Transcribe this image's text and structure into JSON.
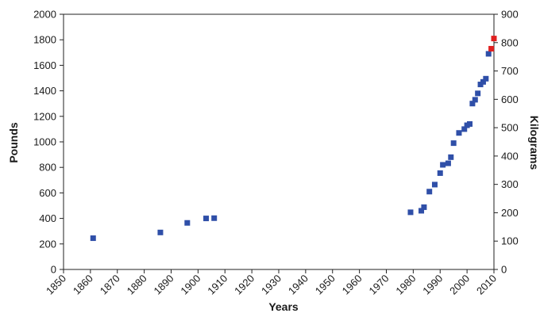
{
  "chart_data": {
    "type": "scatter",
    "title": "",
    "xlabel": "Years",
    "ylabel": "Pounds",
    "y2label": "Kilograms",
    "xlim": [
      1850,
      2010
    ],
    "ylim": [
      0,
      2000
    ],
    "y2lim": [
      0,
      900
    ],
    "xticks": [
      "1850",
      "1860",
      "1870",
      "1880",
      "1890",
      "1900",
      "1910",
      "1920",
      "1930",
      "1940",
      "1950",
      "1960",
      "1970",
      "1980",
      "1990",
      "2000",
      "2010"
    ],
    "yticks": [
      "0",
      "200",
      "400",
      "600",
      "800",
      "1000",
      "1200",
      "1400",
      "1600",
      "1800",
      "2000"
    ],
    "y2ticks": [
      "0",
      "100",
      "200",
      "300",
      "400",
      "500",
      "600",
      "700",
      "800",
      "900"
    ],
    "grid": false,
    "legend": "none",
    "series": [
      {
        "color": "#2f4fa8",
        "points": [
          [
            1861,
            245
          ],
          [
            1886,
            290
          ],
          [
            1896,
            365
          ],
          [
            1903,
            400
          ],
          [
            1906,
            402
          ],
          [
            1979,
            448
          ],
          [
            1983,
            460
          ],
          [
            1984,
            488
          ],
          [
            1986,
            610
          ],
          [
            1988,
            665
          ],
          [
            1990,
            755
          ],
          [
            1991,
            820
          ],
          [
            1993,
            832
          ],
          [
            1994,
            880
          ],
          [
            1995,
            990
          ],
          [
            1997,
            1070
          ],
          [
            1999,
            1100
          ],
          [
            2000,
            1130
          ],
          [
            2001,
            1140
          ],
          [
            2002,
            1300
          ],
          [
            2003,
            1330
          ],
          [
            2004,
            1380
          ],
          [
            2005,
            1450
          ],
          [
            2006,
            1470
          ],
          [
            2007,
            1495
          ],
          [
            2008,
            1690
          ]
        ]
      },
      {
        "color": "#e02020",
        "points": [
          [
            2009,
            1730
          ],
          [
            2010,
            1810
          ]
        ]
      }
    ]
  }
}
